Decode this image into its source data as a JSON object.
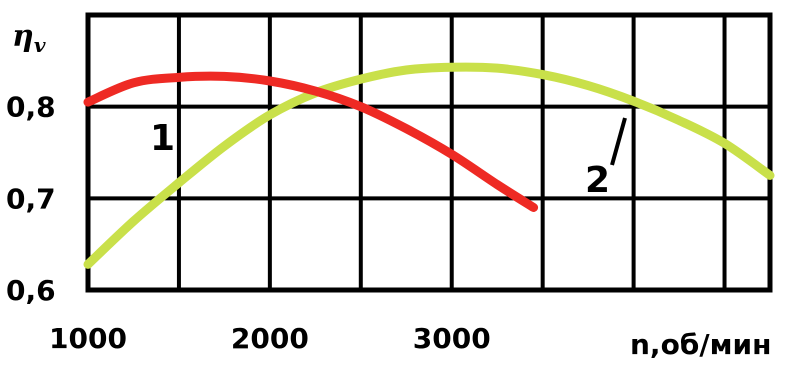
{
  "chart_data": {
    "type": "line",
    "ylabel": "ηv",
    "xlabel": "n,об/мин",
    "x_ticks": [
      "1000",
      "2000",
      "3000"
    ],
    "y_ticks": [
      "0,6",
      "0,7",
      "0,8"
    ],
    "xlim": [
      1000,
      4750
    ],
    "ylim": [
      0.6,
      0.9
    ],
    "grid": true,
    "series": [
      {
        "name": "1",
        "color": "#ee2a24",
        "x": [
          1000,
          1250,
          1500,
          1750,
          2000,
          2250,
          2500,
          2750,
          3000,
          3250,
          3450
        ],
        "y": [
          0.805,
          0.826,
          0.832,
          0.833,
          0.828,
          0.817,
          0.8,
          0.776,
          0.748,
          0.715,
          0.69
        ]
      },
      {
        "name": "2",
        "color": "#c9e04a",
        "x": [
          1000,
          1250,
          1500,
          1750,
          2000,
          2250,
          2500,
          2750,
          3000,
          3250,
          3500,
          3750,
          4000,
          4250,
          4500,
          4750
        ],
        "y": [
          0.628,
          0.675,
          0.717,
          0.757,
          0.791,
          0.815,
          0.83,
          0.84,
          0.843,
          0.842,
          0.835,
          0.823,
          0.806,
          0.785,
          0.76,
          0.725
        ]
      }
    ]
  }
}
